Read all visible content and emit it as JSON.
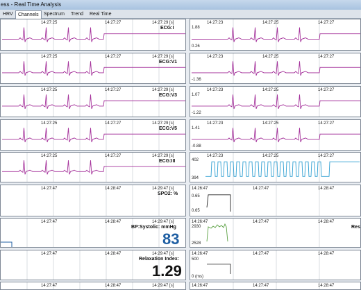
{
  "window": {
    "title": "ess - Real Time Analysis"
  },
  "tabs": [
    {
      "label": "HRV"
    },
    {
      "label": "Channels"
    },
    {
      "label": "Spectrum"
    },
    {
      "label": "Trend"
    },
    {
      "label": "Real Time"
    }
  ],
  "active_tab": "Channels",
  "colors": {
    "ecg": "#a4309a",
    "resp": "#2f9fd2",
    "spo2": "#222222",
    "bp_wave": "#5aa042",
    "bp_value": "#1f5fa3"
  },
  "panels": {
    "ecg_i": {
      "t1": "14:27:25",
      "t2": "14:27:27",
      "t3": "14:27:29 [s]",
      "label": "ECG:I"
    },
    "ecg_v1": {
      "t1": "14:27:25",
      "t2": "14:27:27",
      "t3": "14:27:29 [s]",
      "label": "ECG:V1"
    },
    "ecg_v3": {
      "t1": "14:27:25",
      "t2": "14:27:27",
      "t3": "14:27:29 [s]",
      "label": "ECG:V3"
    },
    "ecg_v5": {
      "t1": "14:27:25",
      "t2": "14:27:27",
      "t3": "14:27:29 [s]",
      "label": "ECG:V5"
    },
    "ecg_iii": {
      "t1": "14:27:25",
      "t2": "14:27:27",
      "t3": "14:27:29 [s]",
      "label": "ECG:III"
    },
    "spo2": {
      "t1": "14:27:47",
      "t2": "14:28:47",
      "t3": "14:29:47 [s]",
      "label": "SPO2: %"
    },
    "bp": {
      "t1": "14:27:47",
      "t2": "14:28:47",
      "t3": "14:29:47 [s]",
      "label": "BP:Systolic: mmHg",
      "value": "83"
    },
    "relax": {
      "t1": "14:27:47",
      "t2": "14:28:47",
      "t3": "14:29:47 [s]",
      "label": "Relaxation Index:",
      "value": "1.29"
    },
    "bottom_left": {
      "t1": "14:27:47",
      "t2": "14:28:47",
      "t3": "14:29:47 [s]"
    },
    "r_ch1": {
      "t1": "14:27:23",
      "t2": "14:27:25",
      "t3": "14:27:27",
      "ymax": "1.88",
      "ymin": "0.26"
    },
    "r_ch2": {
      "t1": "14:27:23",
      "t2": "14:27:25",
      "t3": "14:27:27",
      "ymin": "-1.36"
    },
    "r_ch3": {
      "t1": "14:27:23",
      "t2": "14:27:25",
      "t3": "14:27:27",
      "ymax": "1.07",
      "ymin": "-1.22"
    },
    "r_ch4": {
      "t1": "14:27:23",
      "t2": "14:27:25",
      "t3": "14:27:27",
      "ymax": "1.41",
      "ymin": "-0.88"
    },
    "r_resp": {
      "t1": "14:27:23",
      "t2": "14:27:25",
      "t3": "14:27:27",
      "ymax": "402",
      "ymin": "394"
    },
    "r_spo2": {
      "t1": "14:26:47",
      "t2": "14:27:47",
      "t3": "14:28:47",
      "ymax": "0.65",
      "ymin": "0.65"
    },
    "r_bp": {
      "t1": "14:26:47",
      "t2": "14:27:47",
      "t3": "14:28:47",
      "ymax": "2930",
      "ymin": "2528",
      "label": "Res"
    },
    "r_relax": {
      "t1": "14:26:47",
      "t2": "14:27:47",
      "t3": "14:28:47",
      "ymax": "500",
      "ymin": "0 (ms)"
    },
    "r_bottom": {
      "t1": "14:26:47",
      "t2": "14:27:47",
      "t3": "14:28:47"
    }
  }
}
